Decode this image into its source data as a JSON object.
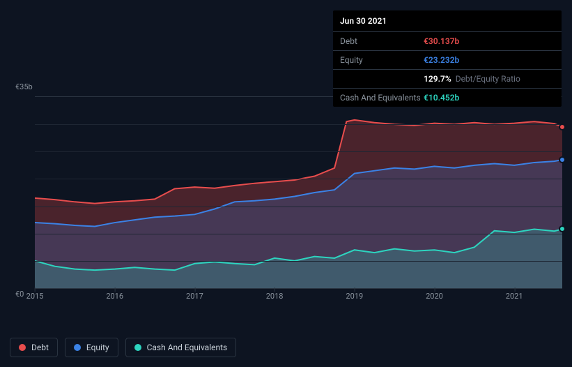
{
  "tooltip": {
    "date": "Jun 30 2021",
    "rows": [
      {
        "label": "Debt",
        "value": "€30.137b",
        "cls": "debt"
      },
      {
        "label": "Equity",
        "value": "€23.232b",
        "cls": "equity"
      },
      {
        "label": "",
        "ratio_val": "129.7%",
        "ratio_lbl": "Debt/Equity Ratio"
      },
      {
        "label": "Cash And Equivalents",
        "value": "€10.452b",
        "cls": "cash"
      }
    ]
  },
  "chart": {
    "type": "area",
    "background_color": "#0d1421",
    "grid_color": "#1e2633",
    "axis_color": "#2a3441",
    "text_color": "#8b949e",
    "label_fontsize": 11,
    "ylim": [
      0,
      35
    ],
    "y_ticks": [
      {
        "value": 35,
        "label": "€35b"
      },
      {
        "value": 0,
        "label": "€0"
      }
    ],
    "gridlines_y": [
      5,
      10,
      15,
      20,
      25,
      30
    ],
    "x_labels": [
      "2015",
      "2016",
      "2017",
      "2018",
      "2019",
      "2020",
      "2021"
    ],
    "x_domain": [
      0,
      6.6
    ],
    "series": [
      {
        "name": "Debt",
        "color": "#e84d4d",
        "fill": "rgba(232,77,77,0.28)",
        "line_width": 2,
        "data": [
          [
            0,
            16.5
          ],
          [
            0.25,
            16.2
          ],
          [
            0.5,
            15.8
          ],
          [
            0.75,
            15.5
          ],
          [
            1,
            15.8
          ],
          [
            1.25,
            16.0
          ],
          [
            1.5,
            16.3
          ],
          [
            1.75,
            18.2
          ],
          [
            2,
            18.5
          ],
          [
            2.25,
            18.3
          ],
          [
            2.5,
            18.8
          ],
          [
            2.75,
            19.2
          ],
          [
            3,
            19.5
          ],
          [
            3.25,
            19.8
          ],
          [
            3.5,
            20.5
          ],
          [
            3.75,
            22.0
          ],
          [
            3.9,
            30.5
          ],
          [
            4,
            30.8
          ],
          [
            4.25,
            30.3
          ],
          [
            4.5,
            30.0
          ],
          [
            4.75,
            29.8
          ],
          [
            5,
            30.2
          ],
          [
            5.25,
            30.0
          ],
          [
            5.5,
            30.3
          ],
          [
            5.75,
            30.0
          ],
          [
            6,
            30.2
          ],
          [
            6.25,
            30.5
          ],
          [
            6.5,
            30.14
          ],
          [
            6.6,
            29.5
          ]
        ]
      },
      {
        "name": "Equity",
        "color": "#3b82e6",
        "fill": "rgba(59,130,230,0.22)",
        "line_width": 2,
        "data": [
          [
            0,
            12.0
          ],
          [
            0.25,
            11.8
          ],
          [
            0.5,
            11.5
          ],
          [
            0.75,
            11.3
          ],
          [
            1,
            12.0
          ],
          [
            1.25,
            12.5
          ],
          [
            1.5,
            13.0
          ],
          [
            1.75,
            13.2
          ],
          [
            2,
            13.5
          ],
          [
            2.25,
            14.5
          ],
          [
            2.5,
            15.8
          ],
          [
            2.75,
            16.0
          ],
          [
            3,
            16.3
          ],
          [
            3.25,
            16.8
          ],
          [
            3.5,
            17.5
          ],
          [
            3.75,
            18.0
          ],
          [
            4,
            21.0
          ],
          [
            4.25,
            21.5
          ],
          [
            4.5,
            22.0
          ],
          [
            4.75,
            21.8
          ],
          [
            5,
            22.3
          ],
          [
            5.25,
            22.0
          ],
          [
            5.5,
            22.5
          ],
          [
            5.75,
            22.8
          ],
          [
            6,
            22.5
          ],
          [
            6.25,
            23.0
          ],
          [
            6.5,
            23.23
          ],
          [
            6.6,
            23.5
          ]
        ]
      },
      {
        "name": "Cash And Equivalents",
        "color": "#2dd4bf",
        "fill": "rgba(45,212,191,0.22)",
        "line_width": 2,
        "data": [
          [
            0,
            5.0
          ],
          [
            0.25,
            4.0
          ],
          [
            0.5,
            3.5
          ],
          [
            0.75,
            3.3
          ],
          [
            1,
            3.5
          ],
          [
            1.25,
            3.8
          ],
          [
            1.5,
            3.5
          ],
          [
            1.75,
            3.3
          ],
          [
            2,
            4.5
          ],
          [
            2.25,
            4.8
          ],
          [
            2.5,
            4.5
          ],
          [
            2.75,
            4.3
          ],
          [
            3,
            5.5
          ],
          [
            3.25,
            5.0
          ],
          [
            3.5,
            5.8
          ],
          [
            3.75,
            5.5
          ],
          [
            4,
            7.0
          ],
          [
            4.25,
            6.5
          ],
          [
            4.5,
            7.2
          ],
          [
            4.75,
            6.8
          ],
          [
            5,
            7.0
          ],
          [
            5.25,
            6.5
          ],
          [
            5.5,
            7.5
          ],
          [
            5.75,
            10.5
          ],
          [
            6,
            10.2
          ],
          [
            6.25,
            10.8
          ],
          [
            6.5,
            10.45
          ],
          [
            6.6,
            10.8
          ]
        ]
      }
    ],
    "markers_x": 6.6
  },
  "legend": [
    {
      "label": "Debt",
      "color": "#e84d4d"
    },
    {
      "label": "Equity",
      "color": "#3b82e6"
    },
    {
      "label": "Cash And Equivalents",
      "color": "#2dd4bf"
    }
  ]
}
